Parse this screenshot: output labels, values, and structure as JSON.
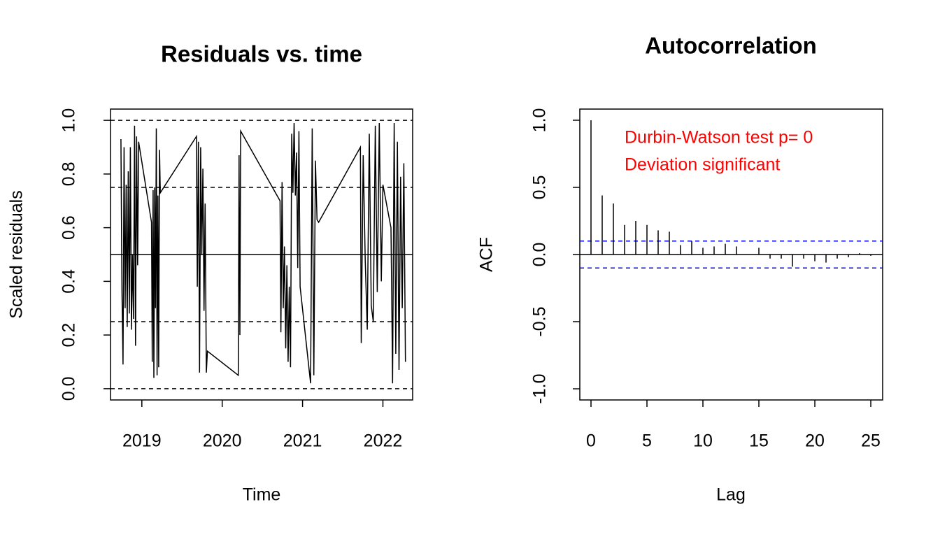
{
  "chart_data": [
    {
      "type": "line",
      "title": "Residuals vs. time",
      "x_label": "Time",
      "y_label": "Scaled residuals",
      "color": "#000000",
      "x": [
        2018.74,
        2018.753,
        2018.766,
        2018.779,
        2018.792,
        2018.805,
        2018.818,
        2018.831,
        2018.844,
        2018.857,
        2018.87,
        2018.883,
        2018.896,
        2018.909,
        2018.922,
        2018.935,
        2018.948,
        2018.96,
        2019.12,
        2019.13,
        2019.14,
        2019.15,
        2019.16,
        2019.17,
        2019.18,
        2019.19,
        2019.2,
        2019.21,
        2019.22,
        2019.23,
        2019.68,
        2019.69,
        2019.704,
        2019.718,
        2019.732,
        2019.746,
        2019.76,
        2019.774,
        2019.788,
        2019.802,
        2019.816,
        2020.2,
        2020.21,
        2020.22,
        2020.23,
        2020.72,
        2020.73,
        2020.745,
        2020.76,
        2020.775,
        2020.79,
        2020.805,
        2020.82,
        2020.835,
        2020.85,
        2020.865,
        2020.88,
        2020.895,
        2020.91,
        2020.925,
        2020.94,
        2020.955,
        2020.97,
        2021.1,
        2021.12,
        2021.14,
        2021.16,
        2021.18,
        2021.2,
        2021.72,
        2021.73,
        2021.755,
        2021.78,
        2021.805,
        2021.83,
        2021.855,
        2021.88,
        2021.905,
        2021.93,
        2021.955,
        2021.98,
        2022.0,
        2022.1,
        2022.11,
        2022.12,
        2022.14,
        2022.16,
        2022.18,
        2022.2,
        2022.22,
        2022.24,
        2022.26,
        2022.28
      ],
      "values": [
        0.93,
        0.36,
        0.09,
        0.9,
        0.3,
        0.76,
        0.23,
        0.81,
        0.28,
        0.9,
        0.22,
        0.5,
        0.26,
        0.98,
        0.16,
        0.94,
        0.46,
        0.92,
        0.62,
        0.1,
        0.74,
        0.04,
        0.75,
        0.3,
        0.97,
        0.05,
        0.72,
        0.08,
        0.89,
        0.73,
        0.94,
        0.38,
        0.92,
        0.06,
        0.9,
        0.5,
        0.82,
        0.29,
        0.69,
        0.06,
        0.14,
        0.05,
        0.87,
        0.2,
        0.96,
        0.7,
        0.21,
        0.77,
        0.3,
        0.53,
        0.15,
        0.46,
        0.1,
        0.38,
        0.08,
        0.95,
        0.73,
        0.99,
        0.72,
        0.88,
        0.45,
        0.96,
        0.38,
        0.02,
        0.97,
        0.05,
        0.85,
        0.63,
        0.62,
        0.9,
        0.17,
        0.87,
        0.48,
        0.22,
        0.95,
        0.31,
        0.25,
        0.98,
        0.36,
        0.99,
        0.4,
        0.76,
        0.6,
        0.35,
        0.02,
        0.99,
        0.13,
        0.92,
        0.07,
        0.79,
        0.3,
        0.84,
        0.1
      ],
      "xlim": [
        2018.61,
        2022.37
      ],
      "xticks": [
        2019,
        2020,
        2021,
        2022
      ],
      "ylim": [
        -0.042,
        1.042
      ],
      "yticks": [
        {
          "value": 0,
          "label": "0.0"
        },
        0.2,
        0.4,
        0.6,
        0.8,
        {
          "value": 1,
          "label": "1.0"
        }
      ],
      "hlines": [
        {
          "value": 0,
          "dash": true,
          "color": "#000000"
        },
        {
          "value": 0.25,
          "dash": true,
          "color": "#000000"
        },
        {
          "value": 0.5,
          "dash": false,
          "color": "#000000"
        },
        {
          "value": 0.75,
          "dash": true,
          "color": "#000000"
        },
        {
          "value": 1,
          "dash": true,
          "color": "#000000"
        }
      ]
    },
    {
      "type": "stem",
      "title": "Autocorrelation",
      "x_label": "Lag",
      "y_label": "ACF",
      "color": "#000000",
      "x": [
        0,
        1,
        2,
        3,
        4,
        5,
        6,
        7,
        8,
        9,
        10,
        11,
        12,
        13,
        14,
        15,
        16,
        17,
        18,
        19,
        20,
        21,
        22,
        23,
        24,
        25
      ],
      "values": [
        1,
        0.44,
        0.38,
        0.22,
        0.25,
        0.22,
        0.18,
        0.17,
        0.07,
        0.1,
        0.05,
        0.06,
        0.08,
        0.06,
        0.0,
        0.05,
        -0.03,
        -0.03,
        -0.09,
        -0.03,
        -0.05,
        -0.06,
        -0.03,
        -0.02,
        0.01,
        -0.01
      ],
      "xlim": [
        -1,
        26.06
      ],
      "xticks": [
        0,
        5,
        10,
        15,
        20,
        25
      ],
      "ylim": [
        -1.083,
        1.083
      ],
      "yticks": [
        {
          "value": -1,
          "label": "-1.0"
        },
        -0.5,
        {
          "value": 0,
          "label": "0.0"
        },
        0.5,
        {
          "value": 1,
          "label": "1.0"
        }
      ],
      "hlines": [
        {
          "value": 0,
          "dash": false,
          "color": "#000000"
        },
        {
          "value": 0.1,
          "dash": true,
          "color": "#0000ff"
        },
        {
          "value": -0.1,
          "dash": true,
          "color": "#0000ff"
        }
      ],
      "annotations": [
        "Durbin-Watson test  p= 0",
        "Deviation  significant"
      ],
      "annotation_color": "#ff0000"
    }
  ]
}
